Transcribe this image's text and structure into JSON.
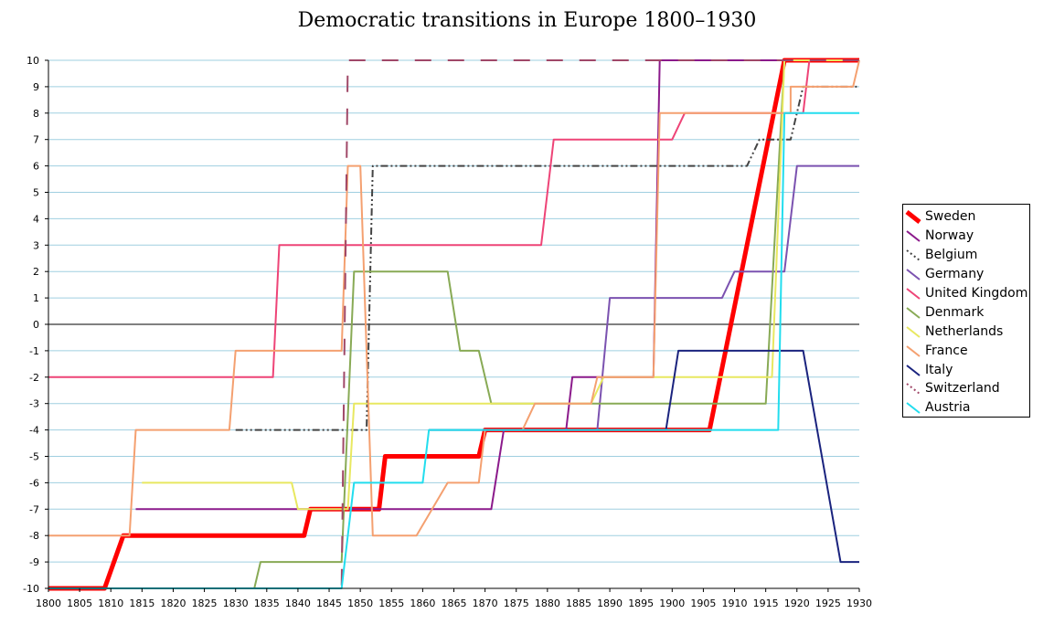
{
  "chart_data": {
    "type": "line",
    "title": "Democratic transitions in Europe 1800–1930",
    "xlabel": "",
    "ylabel": "",
    "xlim": [
      1800,
      1930
    ],
    "ylim": [
      -10,
      10
    ],
    "xticks": [
      1800,
      1805,
      1810,
      1815,
      1820,
      1825,
      1830,
      1835,
      1840,
      1845,
      1850,
      1855,
      1860,
      1865,
      1870,
      1875,
      1880,
      1885,
      1890,
      1895,
      1900,
      1905,
      1910,
      1915,
      1920,
      1925,
      1930
    ],
    "yticks": [
      -10,
      -9,
      -8,
      -7,
      -6,
      -5,
      -4,
      -3,
      -2,
      -1,
      0,
      1,
      2,
      3,
      4,
      5,
      6,
      7,
      8,
      9,
      10
    ],
    "grid": true,
    "legend_position": "right",
    "series": [
      {
        "name": "Sweden",
        "color": "#ff0000",
        "width": 5,
        "dash": "",
        "points": [
          [
            1800,
            -10
          ],
          [
            1809,
            -10
          ],
          [
            1812,
            -8
          ],
          [
            1841,
            -8
          ],
          [
            1842,
            -7
          ],
          [
            1853,
            -7
          ],
          [
            1854,
            -5
          ],
          [
            1869,
            -5
          ],
          [
            1870,
            -4
          ],
          [
            1906,
            -4
          ],
          [
            1918,
            10
          ],
          [
            1930,
            10
          ]
        ]
      },
      {
        "name": "Norway",
        "color": "#8b1a8b",
        "width": 2,
        "dash": "",
        "points": [
          [
            1814,
            -7
          ],
          [
            1871,
            -7
          ],
          [
            1873,
            -4
          ],
          [
            1883,
            -4
          ],
          [
            1884,
            -2
          ],
          [
            1888,
            -2
          ],
          [
            1888,
            -2
          ],
          [
            1897,
            -2
          ],
          [
            1898,
            10
          ],
          [
            1930,
            10
          ]
        ]
      },
      {
        "name": "Belgium",
        "color": "#444444",
        "width": 2,
        "dash": "8,3,2,3,2,3",
        "points": [
          [
            1830,
            -4
          ],
          [
            1851,
            -4
          ],
          [
            1852,
            6
          ],
          [
            1912,
            6
          ],
          [
            1914,
            7
          ],
          [
            1919,
            7
          ],
          [
            1921,
            9
          ],
          [
            1930,
            9
          ]
        ]
      },
      {
        "name": "Germany",
        "color": "#7b52b0",
        "width": 2,
        "dash": "",
        "points": [
          [
            1871,
            -4
          ],
          [
            1888,
            -4
          ],
          [
            1890,
            1
          ],
          [
            1908,
            1
          ],
          [
            1910,
            2
          ],
          [
            1918,
            2
          ],
          [
            1920,
            6
          ],
          [
            1930,
            6
          ]
        ]
      },
      {
        "name": "United Kingdom",
        "color": "#ee4477",
        "width": 2,
        "dash": "",
        "points": [
          [
            1800,
            -2
          ],
          [
            1836,
            -2
          ],
          [
            1837,
            3
          ],
          [
            1879,
            3
          ],
          [
            1881,
            7
          ],
          [
            1900,
            7
          ],
          [
            1902,
            8
          ],
          [
            1917,
            8
          ],
          [
            1921,
            8
          ],
          [
            1922,
            10
          ],
          [
            1930,
            10
          ]
        ]
      },
      {
        "name": "Denmark",
        "color": "#88aa55",
        "width": 2,
        "dash": "",
        "points": [
          [
            1833,
            -10
          ],
          [
            1834,
            -9
          ],
          [
            1847,
            -9
          ],
          [
            1849,
            2
          ],
          [
            1864,
            2
          ],
          [
            1866,
            -1
          ],
          [
            1869,
            -1
          ],
          [
            1871,
            -3
          ],
          [
            1901,
            -3
          ],
          [
            1915,
            -3
          ],
          [
            1918,
            10
          ],
          [
            1930,
            10
          ]
        ]
      },
      {
        "name": "Netherlands",
        "color": "#e8e860",
        "width": 2,
        "dash": "",
        "points": [
          [
            1815,
            -6
          ],
          [
            1839,
            -6
          ],
          [
            1840,
            -7
          ],
          [
            1848,
            -7
          ],
          [
            1849,
            -3
          ],
          [
            1887,
            -3
          ],
          [
            1889,
            -2
          ],
          [
            1916,
            -2
          ],
          [
            1918,
            10
          ],
          [
            1930,
            10
          ]
        ]
      },
      {
        "name": "France",
        "color": "#f4a070",
        "width": 2,
        "dash": "",
        "points": [
          [
            1800,
            -8
          ],
          [
            1813,
            -8
          ],
          [
            1814,
            -4
          ],
          [
            1829,
            -4
          ],
          [
            1830,
            -1
          ],
          [
            1847,
            -1
          ],
          [
            1848,
            6
          ],
          [
            1850,
            6
          ],
          [
            1852,
            -8
          ],
          [
            1859,
            -8
          ],
          [
            1864,
            -6
          ],
          [
            1869,
            -6
          ],
          [
            1870,
            -4
          ],
          [
            1876,
            -4
          ],
          [
            1878,
            -3
          ],
          [
            1887,
            -3
          ],
          [
            1888,
            -2
          ],
          [
            1897,
            -2
          ],
          [
            1898,
            8
          ],
          [
            1919,
            8
          ],
          [
            1919,
            9
          ],
          [
            1929,
            9
          ],
          [
            1930,
            10
          ]
        ]
      },
      {
        "name": "Italy",
        "color": "#1a237e",
        "width": 2,
        "dash": "",
        "points": [
          [
            1861,
            -4
          ],
          [
            1899,
            -4
          ],
          [
            1901,
            -1
          ],
          [
            1921,
            -1
          ],
          [
            1927,
            -9
          ],
          [
            1930,
            -9
          ]
        ]
      },
      {
        "name": "Switzerland",
        "color": "#a04868",
        "width": 2,
        "dash": "18,18",
        "points": [
          [
            1800,
            -10
          ],
          [
            1847,
            -10
          ],
          [
            1848,
            10
          ],
          [
            1930,
            10
          ]
        ]
      },
      {
        "name": "Austria",
        "color": "#22ddee",
        "width": 2,
        "dash": "",
        "points": [
          [
            1800,
            -10
          ],
          [
            1847,
            -10
          ],
          [
            1849,
            -6
          ],
          [
            1860,
            -6
          ],
          [
            1861,
            -4
          ],
          [
            1917,
            -4
          ],
          [
            1918,
            8
          ],
          [
            1930,
            8
          ]
        ]
      }
    ]
  }
}
